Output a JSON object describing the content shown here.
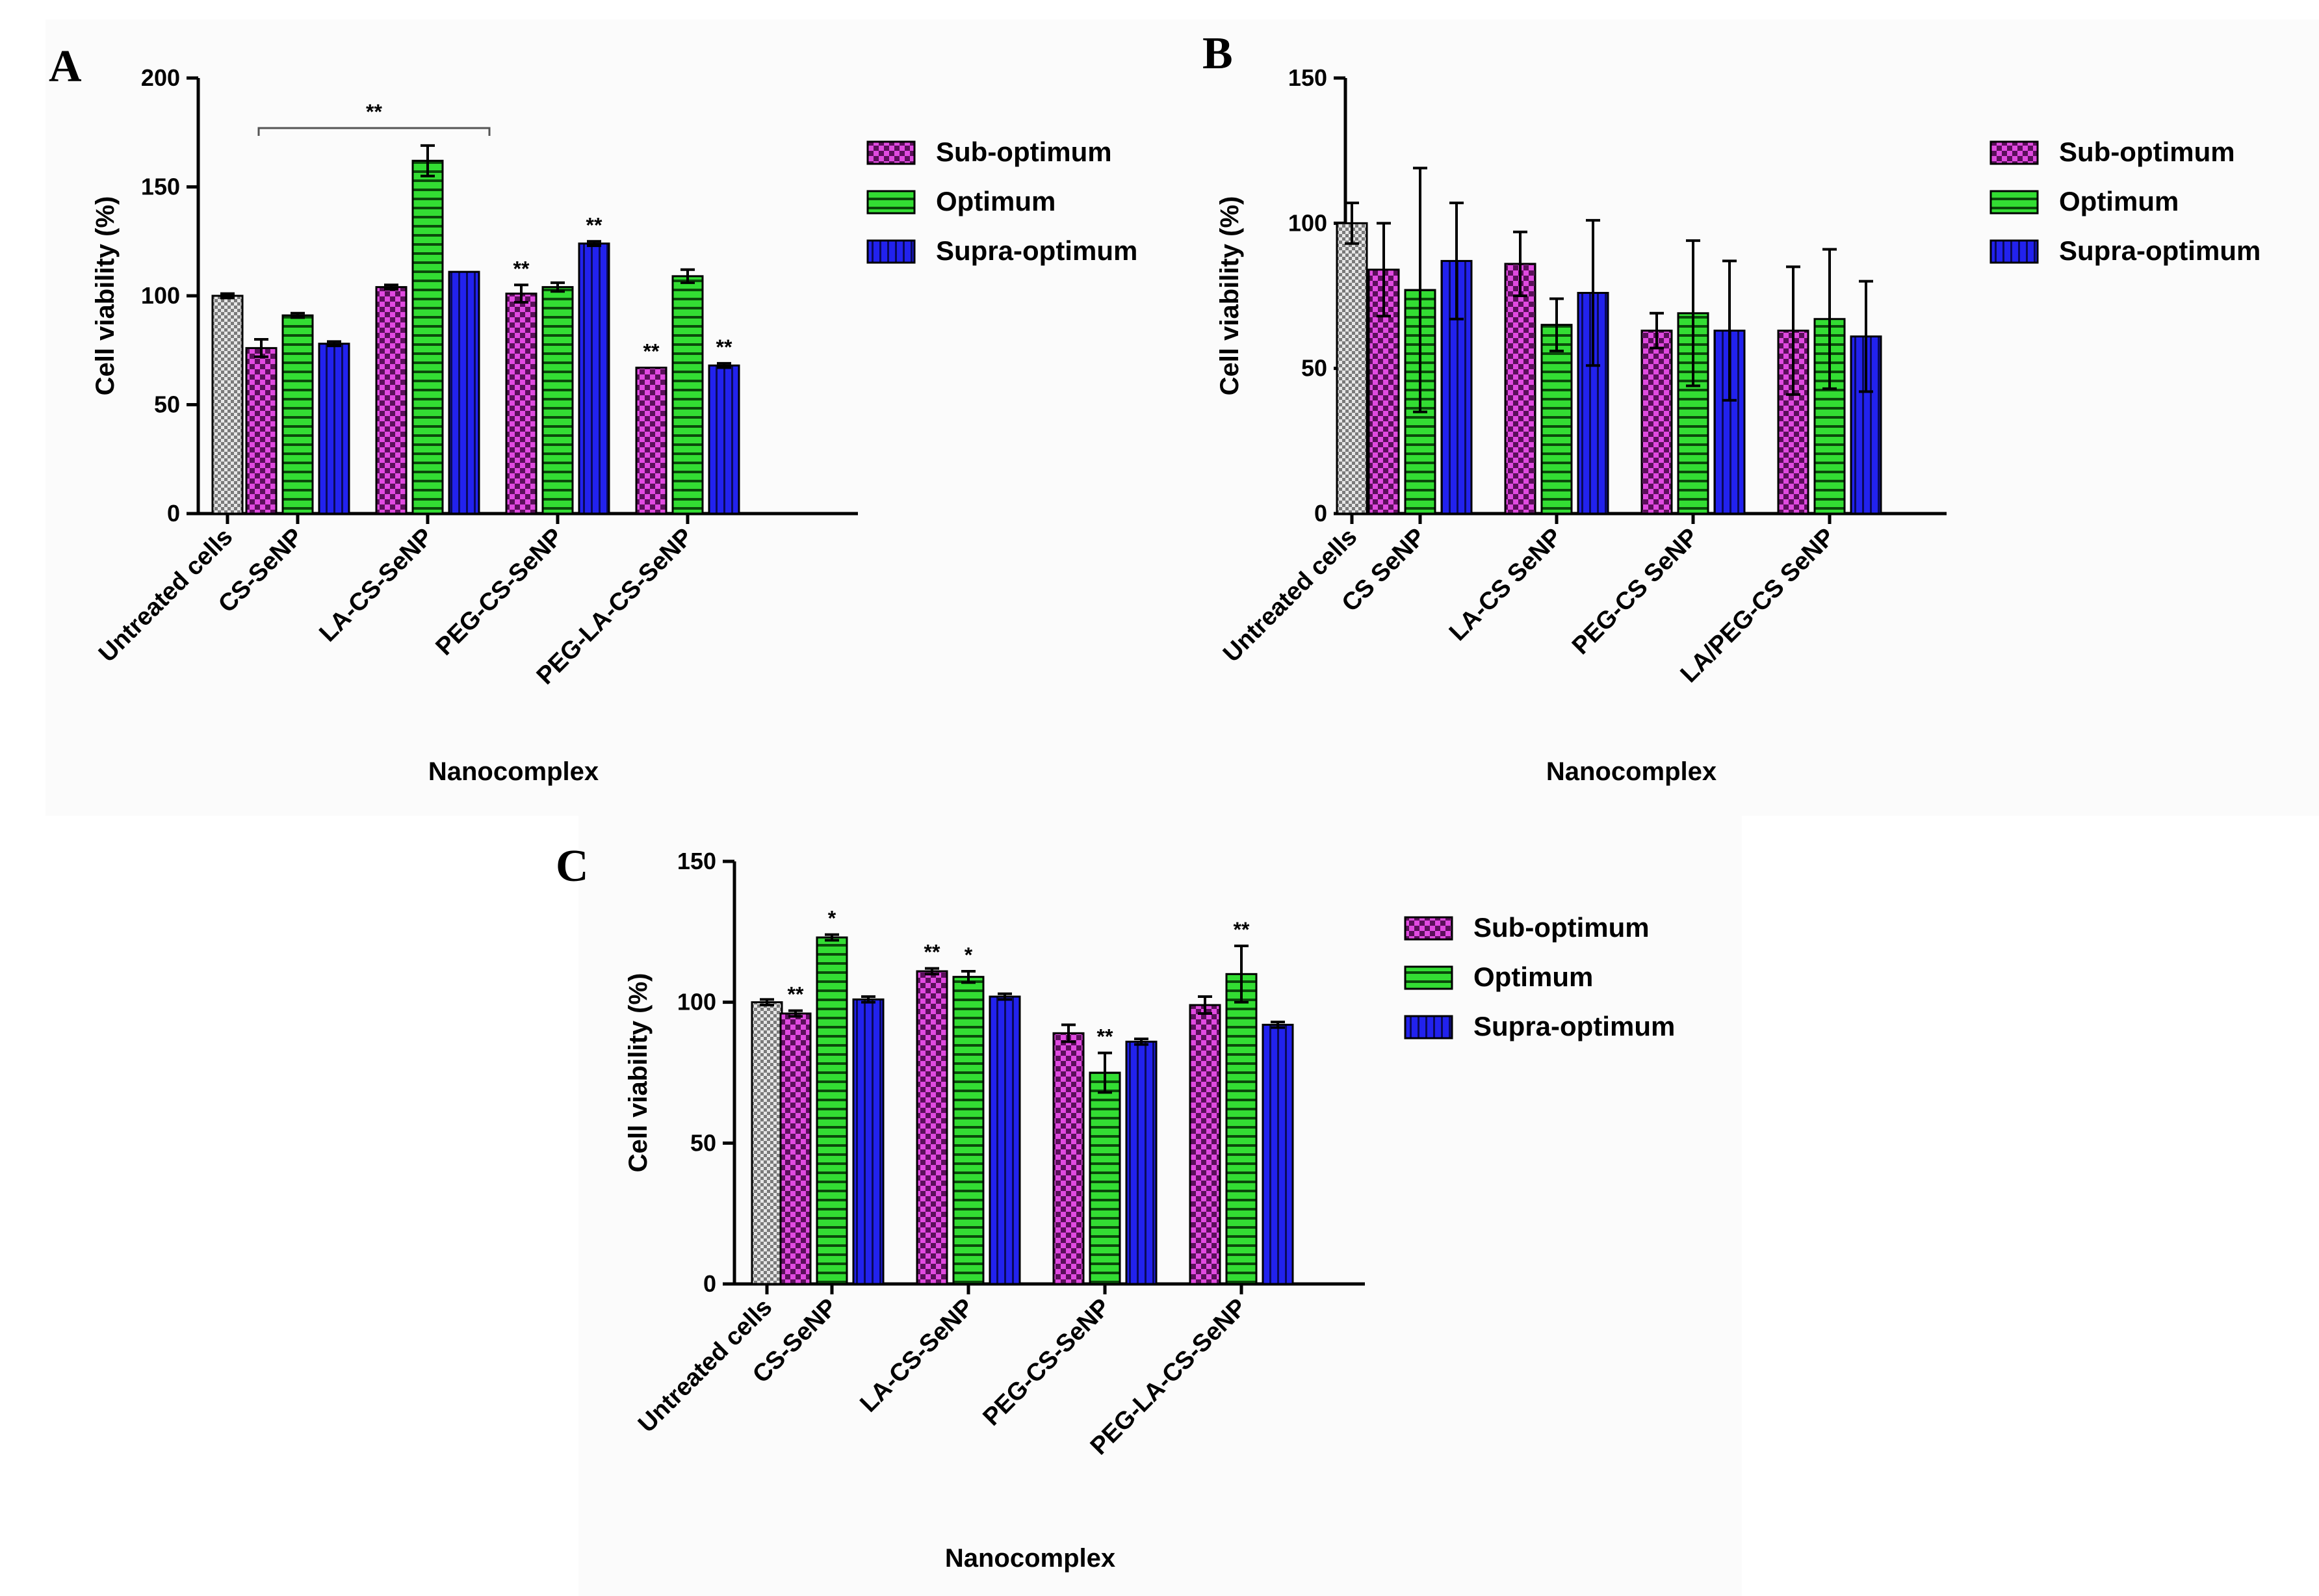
{
  "colors": {
    "untreated": "#c8c8c8",
    "sub_optimum": "#cc33cc",
    "optimum": "#22cc22",
    "supra_optimum": "#1a1ae6"
  },
  "chart_data": [
    {
      "panel": "A",
      "type": "bar",
      "xlabel": "Nanocomplex",
      "ylabel": "Cell viability (%)",
      "ylim": [
        0,
        200
      ],
      "yticks": [
        0,
        50,
        100,
        150,
        200
      ],
      "legend": [
        "Sub-optimum",
        "Optimum",
        "Supra-optimum"
      ],
      "legend_position": "right",
      "categories": [
        "Untreated cells",
        "CS-SeNP",
        "LA-CS-SeNP",
        "PEG-CS-SeNP",
        "PEG-LA-CS-SeNP"
      ],
      "untreated": {
        "value": 100,
        "error": 1
      },
      "series": [
        {
          "name": "Sub-optimum",
          "values": [
            null,
            76,
            104,
            101,
            67
          ],
          "errors": [
            null,
            4,
            1,
            4,
            0
          ],
          "stars": [
            null,
            "",
            "",
            "**",
            "**"
          ]
        },
        {
          "name": "Optimum",
          "values": [
            null,
            91,
            162,
            104,
            109
          ],
          "errors": [
            null,
            1,
            7,
            2,
            3
          ],
          "stars": [
            null,
            "",
            "",
            "",
            ""
          ]
        },
        {
          "name": "Supra-optimum",
          "values": [
            null,
            78,
            111,
            124,
            68
          ],
          "errors": [
            null,
            1,
            0,
            1,
            1
          ],
          "stars": [
            null,
            "",
            "",
            "**",
            "**"
          ]
        }
      ],
      "bracket": {
        "label": "**",
        "from": "CS-SeNP",
        "to": "LA-CS-SeNP",
        "y": 177
      }
    },
    {
      "panel": "B",
      "type": "bar",
      "xlabel": "Nanocomplex",
      "ylabel": "Cell viability (%)",
      "ylim": [
        0,
        150
      ],
      "yticks": [
        0,
        50,
        100,
        150
      ],
      "legend": [
        "Sub-optimum",
        "Optimum",
        "Supra-optimum"
      ],
      "legend_position": "right",
      "categories": [
        "Untreated cells",
        "CS SeNP",
        "LA-CS SeNP",
        "PEG-CS SeNP",
        "LA/PEG-CS SeNP"
      ],
      "untreated": {
        "value": 100,
        "error": 7
      },
      "series": [
        {
          "name": "Sub-optimum",
          "values": [
            null,
            84,
            86,
            63,
            63
          ],
          "errors": [
            null,
            16,
            11,
            6,
            22
          ],
          "stars": [
            null,
            "",
            "",
            "",
            ""
          ]
        },
        {
          "name": "Optimum",
          "values": [
            null,
            77,
            65,
            69,
            67
          ],
          "errors": [
            null,
            42,
            9,
            25,
            24
          ],
          "stars": [
            null,
            "",
            "",
            "",
            ""
          ]
        },
        {
          "name": "Supra-optimum",
          "values": [
            null,
            87,
            76,
            63,
            61
          ],
          "errors": [
            null,
            20,
            25,
            24,
            19
          ],
          "stars": [
            null,
            "",
            "",
            "",
            ""
          ]
        }
      ]
    },
    {
      "panel": "C",
      "type": "bar",
      "xlabel": "Nanocomplex",
      "ylabel": "Cell viability (%)",
      "ylim": [
        0,
        150
      ],
      "yticks": [
        0,
        50,
        100,
        150
      ],
      "legend": [
        "Sub-optimum",
        "Optimum",
        "Supra-optimum"
      ],
      "legend_position": "right",
      "categories": [
        "Untreated cells",
        "CS-SeNP",
        "LA-CS-SeNP",
        "PEG-CS-SeNP",
        "PEG-LA-CS-SeNP"
      ],
      "untreated": {
        "value": 100,
        "error": 1
      },
      "series": [
        {
          "name": "Sub-optimum",
          "values": [
            null,
            96,
            111,
            89,
            99
          ],
          "errors": [
            null,
            1,
            1,
            3,
            3
          ],
          "stars": [
            null,
            "**",
            "**",
            "",
            ""
          ]
        },
        {
          "name": "Optimum",
          "values": [
            null,
            123,
            109,
            75,
            110
          ],
          "errors": [
            null,
            1,
            2,
            7,
            10
          ],
          "stars": [
            null,
            "*",
            "*",
            "**",
            "**"
          ]
        },
        {
          "name": "Supra-optimum",
          "values": [
            null,
            101,
            102,
            86,
            92
          ],
          "errors": [
            null,
            1,
            1,
            1,
            1
          ],
          "stars": [
            null,
            "",
            "",
            "",
            ""
          ]
        }
      ]
    }
  ]
}
